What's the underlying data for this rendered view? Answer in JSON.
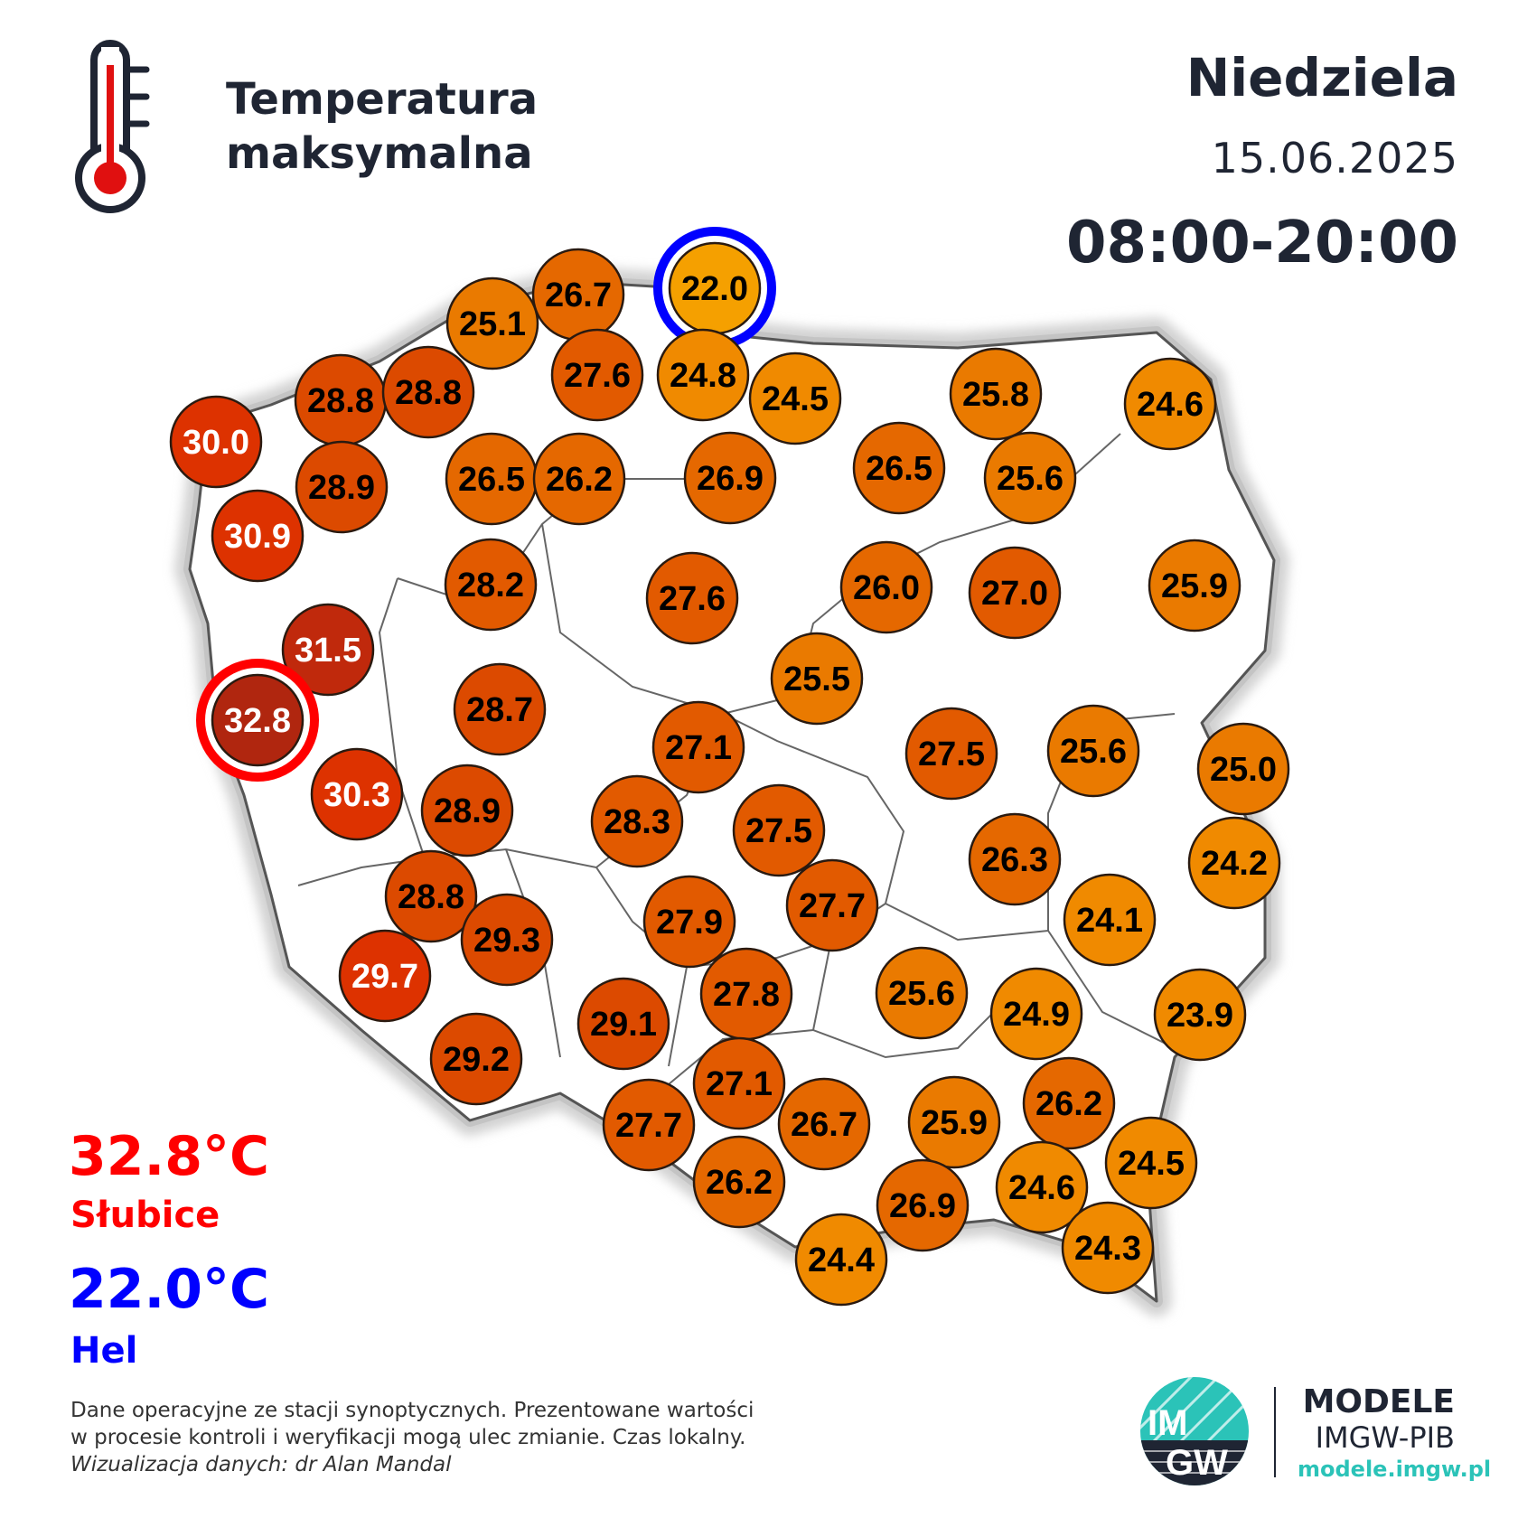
{
  "header": {
    "title_line1": "Temperatura",
    "title_line2": "maksymalna",
    "day": "Niedziela",
    "date": "15.06.2025",
    "hours": "08:00-20:00"
  },
  "extremes": {
    "max_value": "32.8°C",
    "max_station": "Słubice",
    "min_value": "22.0°C",
    "min_station": "Hel",
    "max_color": "#ff0000",
    "min_color": "#0000ff"
  },
  "footer": {
    "note_line1": "Dane operacyjne ze stacji synoptycznych. Prezentowane wartości",
    "note_line2": "w procesie kontroli i weryfikacji mogą ulec zmianie. Czas lokalny.",
    "credit": "Wizualizacja danych: dr Alan Mandal"
  },
  "brand": {
    "logo_text_top": "IM",
    "logo_text_bottom": "GW",
    "name": "MODELE",
    "org": "IMGW-PIB",
    "url": "modele.imgw.pl",
    "accent": "#2bc3b8"
  },
  "icons": {
    "thermometer": "thermometer-icon"
  },
  "stations": [
    {
      "value": "22.0",
      "highlight": "min"
    },
    {
      "value": "26.7"
    },
    {
      "value": "25.1"
    },
    {
      "value": "27.6"
    },
    {
      "value": "24.8"
    },
    {
      "value": "24.5"
    },
    {
      "value": "25.8"
    },
    {
      "value": "24.6"
    },
    {
      "value": "28.8"
    },
    {
      "value": "28.8"
    },
    {
      "value": "30.0"
    },
    {
      "value": "28.9"
    },
    {
      "value": "26.5"
    },
    {
      "value": "26.2"
    },
    {
      "value": "26.9"
    },
    {
      "value": "26.5"
    },
    {
      "value": "25.6"
    },
    {
      "value": "30.9"
    },
    {
      "value": "28.2"
    },
    {
      "value": "27.6"
    },
    {
      "value": "26.0"
    },
    {
      "value": "27.0"
    },
    {
      "value": "25.9"
    },
    {
      "value": "31.5"
    },
    {
      "value": "25.5"
    },
    {
      "value": "32.8",
      "highlight": "max"
    },
    {
      "value": "28.7"
    },
    {
      "value": "27.1"
    },
    {
      "value": "27.5"
    },
    {
      "value": "25.6"
    },
    {
      "value": "25.0"
    },
    {
      "value": "30.3"
    },
    {
      "value": "28.9"
    },
    {
      "value": "28.3"
    },
    {
      "value": "27.5"
    },
    {
      "value": "26.3"
    },
    {
      "value": "24.2"
    },
    {
      "value": "28.8"
    },
    {
      "value": "27.7"
    },
    {
      "value": "24.1"
    },
    {
      "value": "29.3"
    },
    {
      "value": "27.9"
    },
    {
      "value": "29.7"
    },
    {
      "value": "27.8"
    },
    {
      "value": "25.6"
    },
    {
      "value": "24.9"
    },
    {
      "value": "23.9"
    },
    {
      "value": "29.1"
    },
    {
      "value": "29.2"
    },
    {
      "value": "27.1"
    },
    {
      "value": "26.7"
    },
    {
      "value": "25.9"
    },
    {
      "value": "26.2"
    },
    {
      "value": "27.7"
    },
    {
      "value": "24.5"
    },
    {
      "value": "26.2"
    },
    {
      "value": "26.9"
    },
    {
      "value": "24.6"
    },
    {
      "value": "24.4"
    },
    {
      "value": "24.3"
    }
  ]
}
